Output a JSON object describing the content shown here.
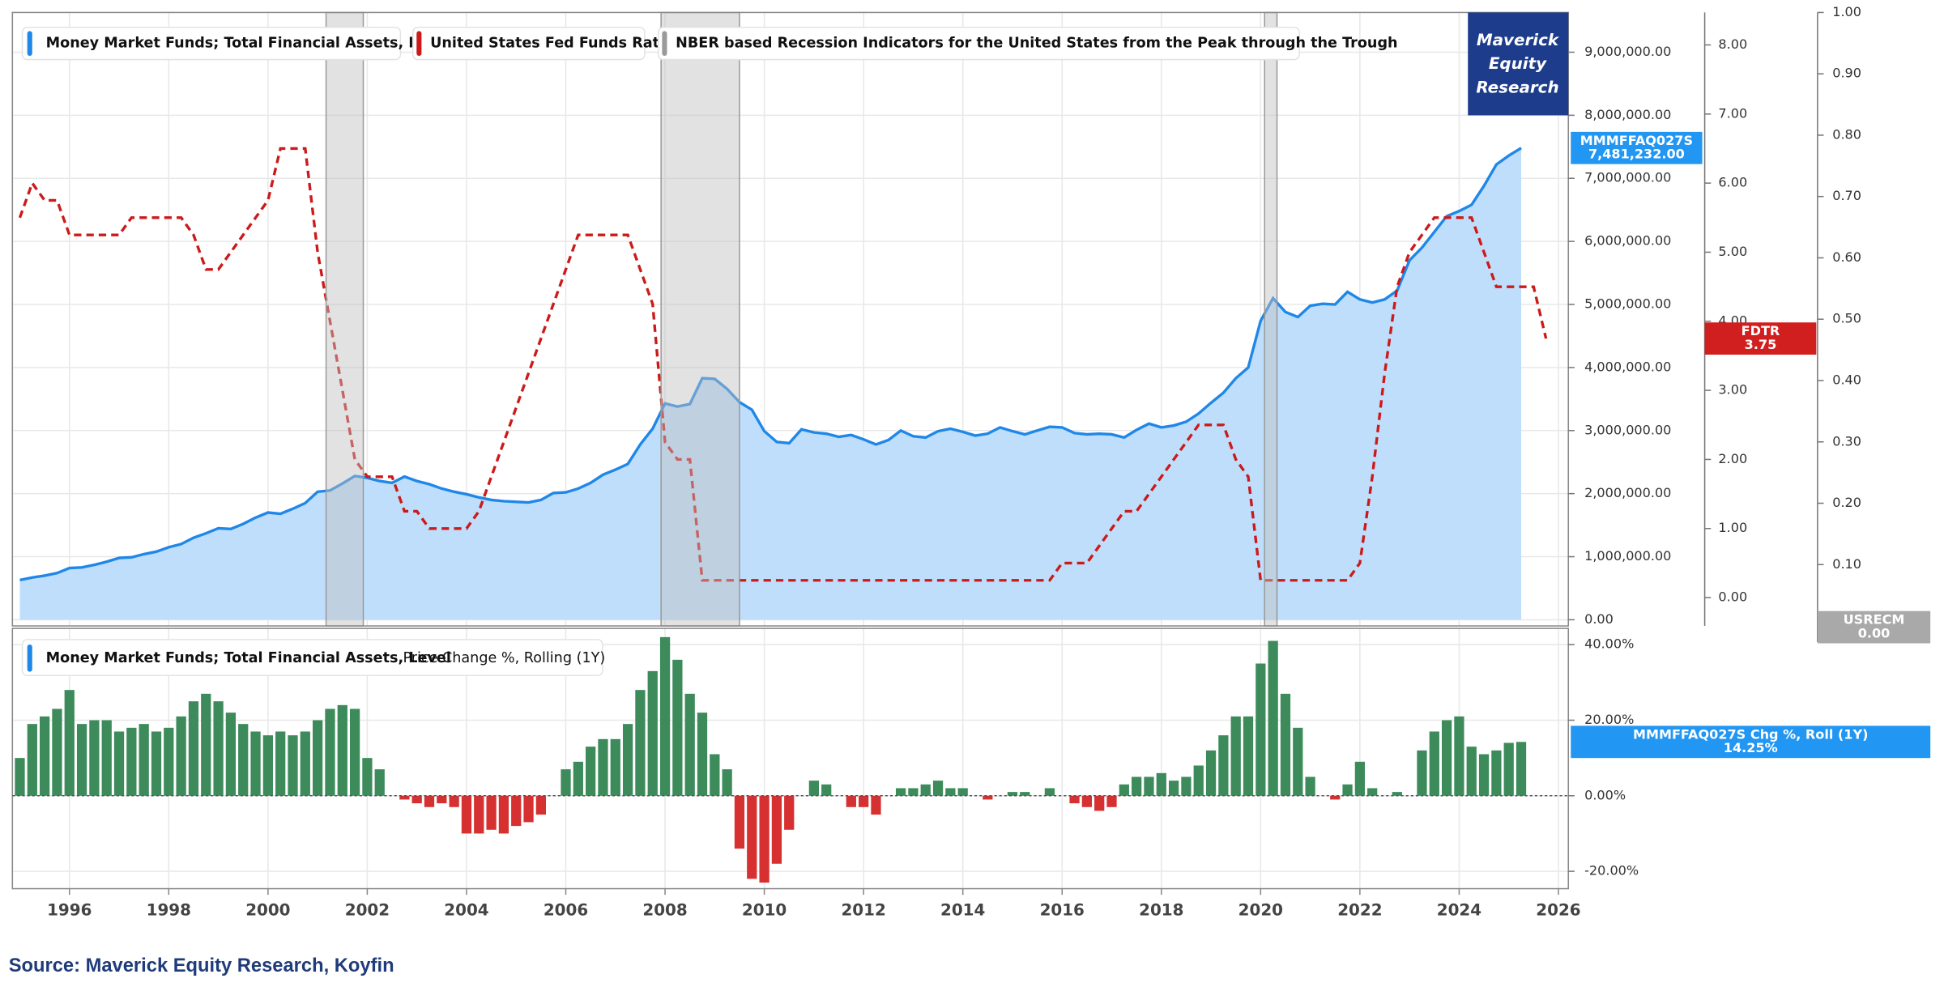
{
  "chart_data": {
    "type": "line",
    "x": [
      1995,
      1995.25,
      1995.5,
      1995.75,
      1996,
      1996.25,
      1996.5,
      1996.75,
      1997,
      1997.25,
      1997.5,
      1997.75,
      1998,
      1998.25,
      1998.5,
      1998.75,
      1999,
      1999.25,
      1999.5,
      1999.75,
      2000,
      2000.25,
      2000.5,
      2000.75,
      2001,
      2001.25,
      2001.5,
      2001.75,
      2002,
      2002.25,
      2002.5,
      2002.75,
      2003,
      2003.25,
      2003.5,
      2003.75,
      2004,
      2004.25,
      2004.5,
      2004.75,
      2005,
      2005.25,
      2005.5,
      2005.75,
      2006,
      2006.25,
      2006.5,
      2006.75,
      2007,
      2007.25,
      2007.5,
      2007.75,
      2008,
      2008.25,
      2008.5,
      2008.75,
      2009,
      2009.25,
      2009.5,
      2009.75,
      2010,
      2010.25,
      2010.5,
      2010.75,
      2011,
      2011.25,
      2011.5,
      2011.75,
      2012,
      2012.25,
      2012.5,
      2012.75,
      2013,
      2013.25,
      2013.5,
      2013.75,
      2014,
      2014.25,
      2014.5,
      2014.75,
      2015,
      2015.25,
      2015.5,
      2015.75,
      2016,
      2016.25,
      2016.5,
      2016.75,
      2017,
      2017.25,
      2017.5,
      2017.75,
      2018,
      2018.25,
      2018.5,
      2018.75,
      2019,
      2019.25,
      2019.5,
      2019.75,
      2020,
      2020.25,
      2020.5,
      2020.75,
      2021,
      2021.25,
      2021.5,
      2021.75,
      2022,
      2022.25,
      2022.5,
      2022.75,
      2023,
      2023.25,
      2023.5,
      2023.75,
      2024,
      2024.25,
      2024.5,
      2024.75,
      2025,
      2025.25,
      2025.5,
      2025.75
    ],
    "xlim": [
      1994.85,
      2026.2
    ],
    "xticks": [
      1996,
      1998,
      2000,
      2002,
      2004,
      2006,
      2008,
      2010,
      2012,
      2014,
      2016,
      2018,
      2020,
      2022,
      2024,
      2026
    ],
    "ylim": [
      -98000,
      9630000
    ],
    "yticks": [
      {
        "value": 0,
        "label": "0.00"
      },
      {
        "value": 1000000,
        "label": "1,000,000.00"
      },
      {
        "value": 2000000,
        "label": "2,000,000.00"
      },
      {
        "value": 3000000,
        "label": "3,000,000.00"
      },
      {
        "value": 4000000,
        "label": "4,000,000.00"
      },
      {
        "value": 5000000,
        "label": "5,000,000.00"
      },
      {
        "value": 6000000,
        "label": "6,000,000.00"
      },
      {
        "value": 7000000,
        "label": "7,000,000.00"
      },
      {
        "value": 8000000,
        "label": "8,000,000.00"
      },
      {
        "value": 9000000,
        "label": "9,000,000.00"
      }
    ],
    "y2lim": [
      -0.41,
      8.47
    ],
    "y2ticks": [
      {
        "value": 0,
        "label": "0.00"
      },
      {
        "value": 1,
        "label": "1.00"
      },
      {
        "value": 2,
        "label": "2.00"
      },
      {
        "value": 3,
        "label": "3.00"
      },
      {
        "value": 4,
        "label": "4.00"
      },
      {
        "value": 5,
        "label": "5.00"
      },
      {
        "value": 6,
        "label": "6.00"
      },
      {
        "value": 7,
        "label": "7.00"
      },
      {
        "value": 8,
        "label": "8.00"
      }
    ],
    "y3lim": [
      0,
      1
    ],
    "y3ticks": [
      {
        "value": 0,
        "label": "0.00"
      },
      {
        "value": 0.1,
        "label": "0.10"
      },
      {
        "value": 0.2,
        "label": "0.20"
      },
      {
        "value": 0.3,
        "label": "0.30"
      },
      {
        "value": 0.4,
        "label": "0.40"
      },
      {
        "value": 0.5,
        "label": "0.50"
      },
      {
        "value": 0.6,
        "label": "0.60"
      },
      {
        "value": 0.7,
        "label": "0.70"
      },
      {
        "value": 0.8,
        "label": "0.80"
      },
      {
        "value": 0.9,
        "label": "0.90"
      },
      {
        "value": 1,
        "label": "1.00"
      }
    ],
    "grid": true,
    "logo": [
      "Maverick",
      "Equity",
      "Research"
    ],
    "source": "Source: Maverick Equity Research, Koyfin",
    "series": [
      {
        "name": "Money Market Funds; Total Financial Assets, Level",
        "kind": "area",
        "color": "#1f87e8",
        "fill": "#bfdefb",
        "badge": "MMMFFAQ027S",
        "last_label": "7,481,232.00",
        "values": [
          630000,
          670000,
          700000,
          740000,
          820000,
          830000,
          870000,
          920000,
          980000,
          990000,
          1040000,
          1080000,
          1150000,
          1200000,
          1300000,
          1370000,
          1450000,
          1440000,
          1520000,
          1620000,
          1700000,
          1680000,
          1760000,
          1850000,
          2030000,
          2050000,
          2160000,
          2280000,
          2250000,
          2200000,
          2170000,
          2270000,
          2200000,
          2150000,
          2080000,
          2030000,
          1990000,
          1940000,
          1900000,
          1880000,
          1870000,
          1860000,
          1900000,
          2010000,
          2020000,
          2080000,
          2170000,
          2300000,
          2380000,
          2470000,
          2780000,
          3030000,
          3430000,
          3380000,
          3420000,
          3830000,
          3820000,
          3660000,
          3450000,
          3330000,
          2990000,
          2820000,
          2800000,
          3020000,
          2970000,
          2950000,
          2900000,
          2930000,
          2860000,
          2780000,
          2850000,
          3000000,
          2910000,
          2890000,
          2990000,
          3030000,
          2980000,
          2920000,
          2950000,
          3050000,
          2990000,
          2940000,
          3000000,
          3060000,
          3050000,
          2960000,
          2940000,
          2950000,
          2940000,
          2890000,
          3010000,
          3110000,
          3050000,
          3080000,
          3140000,
          3270000,
          3440000,
          3600000,
          3830000,
          4000000,
          4740000,
          5100000,
          4880000,
          4800000,
          4980000,
          5010000,
          5000000,
          5200000,
          5080000,
          5030000,
          5080000,
          5220000,
          5700000,
          5900000,
          6150000,
          6400000,
          6480000,
          6580000,
          6880000,
          7220000,
          7360000,
          7481232,
          null,
          null
        ]
      },
      {
        "name": "United States Fed Funds Rate",
        "kind": "dashed",
        "axis": "y2",
        "color": "#cc1a1a",
        "badge": "FDTR",
        "last_label": "3.75",
        "values": [
          5.5,
          6,
          5.75,
          5.75,
          5.25,
          5.25,
          5.25,
          5.25,
          5.25,
          5.5,
          5.5,
          5.5,
          5.5,
          5.5,
          5.25,
          4.75,
          4.75,
          5,
          5.25,
          5.5,
          5.75,
          6.5,
          6.5,
          6.5,
          5,
          4,
          3,
          2,
          1.75,
          1.75,
          1.75,
          1.25,
          1.25,
          1,
          1,
          1,
          1,
          1.25,
          1.75,
          2.25,
          2.75,
          3.25,
          3.75,
          4.25,
          4.75,
          5.25,
          5.25,
          5.25,
          5.25,
          5.25,
          4.75,
          4.25,
          2.25,
          2,
          2,
          0.25,
          0.25,
          0.25,
          0.25,
          0.25,
          0.25,
          0.25,
          0.25,
          0.25,
          0.25,
          0.25,
          0.25,
          0.25,
          0.25,
          0.25,
          0.25,
          0.25,
          0.25,
          0.25,
          0.25,
          0.25,
          0.25,
          0.25,
          0.25,
          0.25,
          0.25,
          0.25,
          0.25,
          0.25,
          0.5,
          0.5,
          0.5,
          0.75,
          1,
          1.25,
          1.25,
          1.5,
          1.75,
          2,
          2.25,
          2.5,
          2.5,
          2.5,
          2,
          1.75,
          0.25,
          0.25,
          0.25,
          0.25,
          0.25,
          0.25,
          0.25,
          0.25,
          0.5,
          1.75,
          3.25,
          4.5,
          5,
          5.25,
          5.5,
          5.5,
          5.5,
          5.5,
          5,
          4.5,
          4.5,
          4.5,
          4.5,
          3.75
        ]
      },
      {
        "name": "NBER based Recession Indicators for the United States from the Peak through the Trough",
        "kind": "bands",
        "axis": "y3",
        "color": "#9a9a9a",
        "badge": "USRECM",
        "last_label": "0.00",
        "periods": [
          [
            2001.17,
            2001.92
          ],
          [
            2007.92,
            2009.5
          ],
          [
            2020.08,
            2020.33
          ]
        ]
      }
    ],
    "lower": {
      "type": "bar",
      "subtitle": "Price Change %, Rolling (1Y)",
      "ylim": [
        -24.6,
        44.3
      ],
      "yticks": [
        {
          "value": -20,
          "label": "-20.00%"
        },
        {
          "value": 0,
          "label": "0.00%"
        },
        {
          "value": 20,
          "label": "20.00%"
        },
        {
          "value": 40,
          "label": "40.00%"
        }
      ],
      "series": [
        {
          "color": "#3d8b5b",
          "negative_color": "#d63031",
          "badge": "MMMFFAQ027S Chg %, Roll (1Y)",
          "last_label": "14.25%",
          "values": [
            10,
            19,
            21,
            23,
            28,
            19,
            20,
            20,
            17,
            18,
            19,
            17,
            18,
            21,
            25,
            27,
            25,
            22,
            19,
            17,
            16,
            17,
            16,
            17,
            20,
            23,
            24,
            23,
            10,
            7,
            0,
            -1,
            -2,
            -3,
            -2,
            -3,
            -10,
            -10,
            -9,
            -10,
            -8,
            -7,
            -5,
            0,
            7,
            9,
            13,
            15,
            15,
            19,
            28,
            33,
            42,
            36,
            27,
            22,
            11,
            7,
            -14,
            -22,
            -23,
            -18,
            -9,
            0,
            4,
            3,
            0,
            -3,
            -3,
            -5,
            0,
            2,
            2,
            3,
            4,
            2,
            2,
            0,
            -1,
            0,
            1,
            1,
            0,
            2,
            0,
            -2,
            -3,
            -4,
            -3,
            3,
            5,
            5,
            6,
            4,
            5,
            8,
            12,
            16,
            21,
            21,
            35,
            41,
            27,
            18,
            5,
            0,
            -1,
            3,
            9,
            2,
            0,
            1,
            0,
            12,
            17,
            20,
            21,
            13,
            11,
            12,
            14,
            14.25,
            null,
            null
          ]
        }
      ]
    }
  }
}
